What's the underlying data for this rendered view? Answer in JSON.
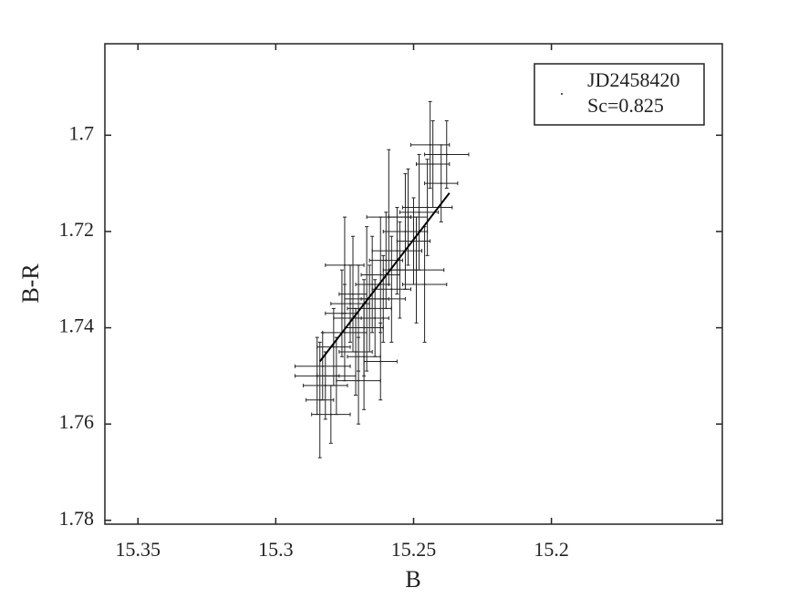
{
  "chart_data": {
    "type": "scatter",
    "xlabel": "B",
    "ylabel": "B-R",
    "xlim": [
      15.362,
      15.138
    ],
    "ylim": [
      1.681,
      1.7808
    ],
    "xticks": [
      15.35,
      15.3,
      15.25,
      15.2
    ],
    "yticks": [
      1.7,
      1.72,
      1.74,
      1.76,
      1.78
    ],
    "x_reversed": true,
    "y_reversed": true,
    "legend_position": "upper right",
    "legend_note": "Sc=0.825",
    "series": [
      {
        "name": "JD2458420",
        "color": "#222222",
        "x": [
          15.285,
          15.284,
          15.282,
          15.28,
          15.283,
          15.279,
          15.276,
          15.275,
          15.273,
          15.272,
          15.271,
          15.27,
          15.268,
          15.268,
          15.266,
          15.265,
          15.264,
          15.262,
          15.261,
          15.26,
          15.258,
          15.256,
          15.255,
          15.253,
          15.252,
          15.25,
          15.249,
          15.248,
          15.246,
          15.245,
          15.243,
          15.244,
          15.24,
          15.238,
          15.275,
          15.27,
          15.262,
          15.267,
          15.278,
          15.259
        ],
        "values": [
          1.75,
          1.755,
          1.752,
          1.758,
          1.748,
          1.744,
          1.737,
          1.741,
          1.735,
          1.733,
          1.745,
          1.738,
          1.74,
          1.746,
          1.736,
          1.731,
          1.738,
          1.729,
          1.734,
          1.726,
          1.732,
          1.724,
          1.728,
          1.72,
          1.717,
          1.722,
          1.728,
          1.716,
          1.731,
          1.715,
          1.706,
          1.702,
          1.71,
          1.704,
          1.727,
          1.751,
          1.747,
          1.734,
          1.75,
          1.717
        ],
        "xerr": [
          0.008,
          0.005,
          0.008,
          0.007,
          0.01,
          0.006,
          0.006,
          0.008,
          0.007,
          0.005,
          0.006,
          0.009,
          0.007,
          0.006,
          0.008,
          0.006,
          0.005,
          0.007,
          0.008,
          0.006,
          0.007,
          0.009,
          0.006,
          0.008,
          0.007,
          0.006,
          0.01,
          0.007,
          0.008,
          0.009,
          0.006,
          0.007,
          0.006,
          0.008,
          0.007,
          0.008,
          0.006,
          0.008,
          0.007,
          0.008
        ],
        "yerr": [
          0.008,
          0.012,
          0.007,
          0.006,
          0.007,
          0.008,
          0.009,
          0.01,
          0.008,
          0.012,
          0.009,
          0.011,
          0.01,
          0.011,
          0.009,
          0.01,
          0.008,
          0.012,
          0.009,
          0.01,
          0.011,
          0.009,
          0.01,
          0.012,
          0.01,
          0.009,
          0.011,
          0.012,
          0.012,
          0.01,
          0.009,
          0.009,
          0.008,
          0.007,
          0.01,
          0.009,
          0.008,
          0.015,
          0.008,
          0.014
        ]
      }
    ],
    "fit": {
      "color": "#000000",
      "x": [
        15.284,
        15.237
      ],
      "values": [
        1.747,
        1.712
      ]
    }
  }
}
